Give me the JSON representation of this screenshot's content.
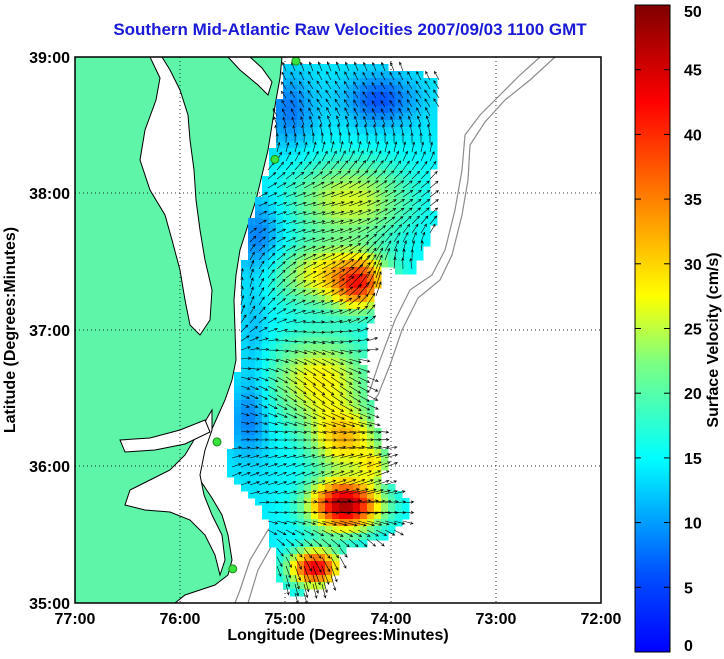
{
  "title": "Southern Mid-Atlantic Raw Velocities 2007/09/03 1100 GMT",
  "x_axis": {
    "label": "Longitude (Degrees:Minutes)",
    "ticks": [
      "77:00",
      "76:00",
      "75:00",
      "74:00",
      "73:00",
      "72:00"
    ]
  },
  "y_axis": {
    "label": "Latitude (Degrees:Minutes)",
    "ticks": [
      "39:00",
      "38:00",
      "37:00",
      "36:00",
      "35:00"
    ]
  },
  "colorbar": {
    "label": "Surface Velocity (cm/s)",
    "ticks": [
      "0",
      "5",
      "10",
      "15",
      "20",
      "25",
      "30",
      "35",
      "40",
      "45",
      "50"
    ],
    "min": 0,
    "max": 50,
    "colormap": "jet"
  },
  "colors": {
    "land": "#5ff5a8",
    "ocean": "#ffffff",
    "title": "#1a1ad6",
    "stations": "#39e23d",
    "coastline": "#000000",
    "bathymetry": "#8c8c8c"
  },
  "map": {
    "lon_range": [
      -77,
      -72
    ],
    "lat_range": [
      35,
      39
    ],
    "grid": "dotted",
    "stations": [
      {
        "lon": -74.9,
        "lat": 38.97
      },
      {
        "lon": -75.1,
        "lat": 38.25
      },
      {
        "lon": -75.65,
        "lat": 36.18
      },
      {
        "lon": -75.5,
        "lat": 35.25
      }
    ]
  }
}
